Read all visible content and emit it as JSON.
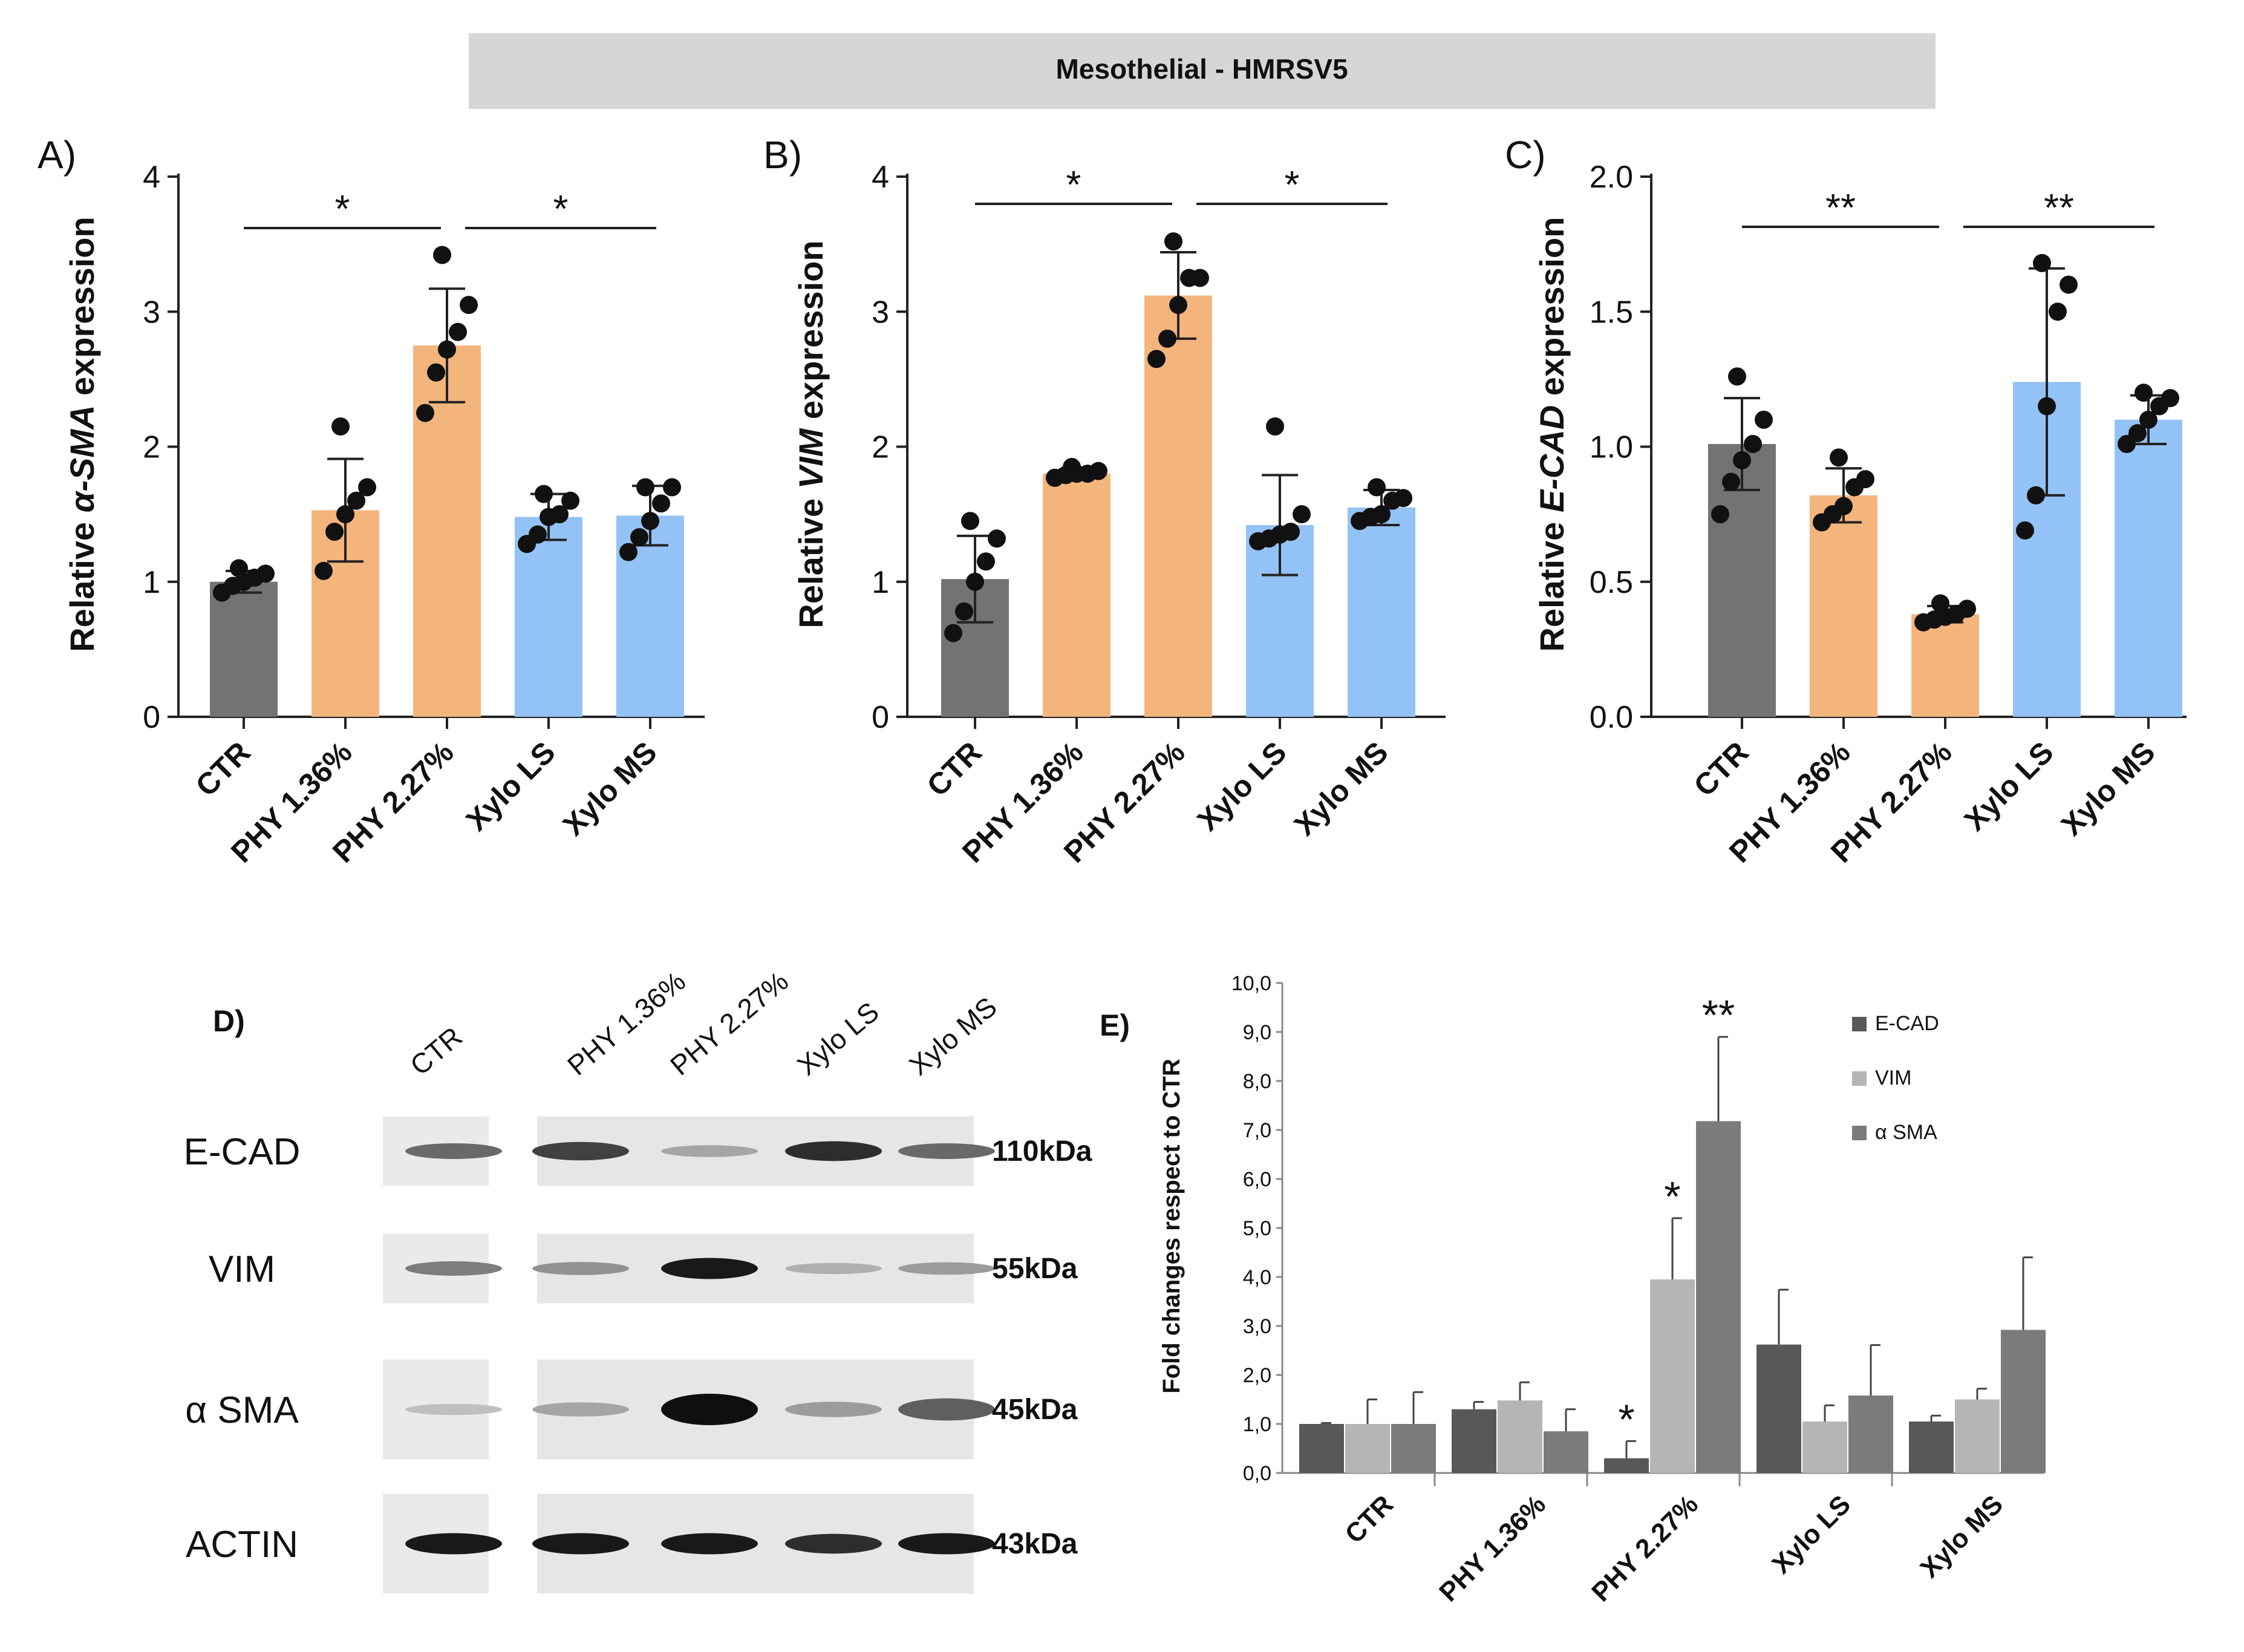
{
  "header": {
    "title": "Mesothelial - HMRSV5"
  },
  "colors": {
    "ctr": "#737373",
    "phy": "#F4B57D",
    "xylo": "#93C3F6",
    "ecad": "#585858",
    "vim": "#B5B5B5",
    "asma": "#7B7B7B",
    "header_bg": "#D6D6D6",
    "dot": "#111111"
  },
  "chart_data": [
    {
      "panel": "A)",
      "type": "bar",
      "title": "",
      "ylabel_prefix": "Relative ",
      "ylabel_gene": "α-SMA",
      "ylabel_suffix": " expression",
      "ylim": [
        0,
        4
      ],
      "yticks": [
        "0",
        "1",
        "2",
        "3",
        "4"
      ],
      "categories": [
        "CTR",
        "PHY 1.36%",
        "PHY 2.27%",
        "Xylo LS",
        "Xylo MS"
      ],
      "values": [
        1.0,
        1.53,
        2.75,
        1.48,
        1.49
      ],
      "errors": [
        0.08,
        0.38,
        0.42,
        0.17,
        0.22
      ],
      "points": [
        [
          0.92,
          0.97,
          1.0,
          1.03,
          1.06,
          1.1
        ],
        [
          1.08,
          1.37,
          1.5,
          1.6,
          1.7,
          2.15
        ],
        [
          2.25,
          2.55,
          2.72,
          2.85,
          3.05,
          3.42
        ],
        [
          1.28,
          1.35,
          1.48,
          1.5,
          1.6,
          1.65
        ],
        [
          1.22,
          1.33,
          1.45,
          1.58,
          1.7,
          1.7
        ]
      ],
      "significance": [
        {
          "from": 0,
          "to": 2,
          "label": "*"
        },
        {
          "from": 2,
          "to": 4,
          "label": "*"
        }
      ]
    },
    {
      "panel": "B)",
      "type": "bar",
      "title": "",
      "ylabel_prefix": "Relative ",
      "ylabel_gene": "VIM",
      "ylabel_suffix": " expression",
      "ylim": [
        0,
        4
      ],
      "yticks": [
        "0",
        "1",
        "2",
        "3",
        "4"
      ],
      "categories": [
        "CTR",
        "PHY 1.36%",
        "PHY 2.27%",
        "Xylo LS",
        "Xylo MS"
      ],
      "values": [
        1.02,
        1.8,
        3.12,
        1.42,
        1.55
      ],
      "errors": [
        0.32,
        0.03,
        0.32,
        0.37,
        0.13
      ],
      "points": [
        [
          0.62,
          0.78,
          1.0,
          1.15,
          1.32,
          1.45
        ],
        [
          1.77,
          1.79,
          1.8,
          1.8,
          1.82,
          1.85
        ],
        [
          2.65,
          2.8,
          3.05,
          3.25,
          3.25,
          3.52
        ],
        [
          1.3,
          1.32,
          1.35,
          1.37,
          1.5,
          2.15
        ],
        [
          1.45,
          1.48,
          1.5,
          1.6,
          1.62,
          1.7
        ]
      ],
      "significance": [
        {
          "from": 0,
          "to": 2,
          "label": "*"
        },
        {
          "from": 2,
          "to": 4,
          "label": "*"
        }
      ]
    },
    {
      "panel": "C)",
      "type": "bar",
      "title": "",
      "ylabel_prefix": "Relative ",
      "ylabel_gene": "E-CAD",
      "ylabel_suffix": " expression",
      "ylim": [
        0,
        2
      ],
      "yticks": [
        "0.0",
        "0.5",
        "1.0",
        "1.5",
        "2.0"
      ],
      "categories": [
        "CTR",
        "PHY 1.36%",
        "PHY 2.27%",
        "Xylo LS",
        "Xylo MS"
      ],
      "values": [
        1.01,
        0.82,
        0.38,
        1.24,
        1.1
      ],
      "errors": [
        0.17,
        0.1,
        0.03,
        0.42,
        0.09
      ],
      "points": [
        [
          0.75,
          0.87,
          0.95,
          1.01,
          1.1,
          1.26
        ],
        [
          0.72,
          0.75,
          0.78,
          0.85,
          0.88,
          0.96
        ],
        [
          0.35,
          0.36,
          0.37,
          0.38,
          0.4,
          0.42
        ],
        [
          0.69,
          0.82,
          1.15,
          1.5,
          1.6,
          1.68
        ],
        [
          1.01,
          1.05,
          1.1,
          1.15,
          1.18,
          1.2
        ]
      ],
      "significance": [
        {
          "from": 0,
          "to": 2,
          "label": "**"
        },
        {
          "from": 2,
          "to": 4,
          "label": "**"
        }
      ]
    },
    {
      "panel": "E)",
      "type": "bar",
      "title": "",
      "ylabel": "Fold changes respect to CTR",
      "ylim": [
        0,
        10
      ],
      "yticks": [
        "0,0",
        "1,0",
        "2,0",
        "3,0",
        "4,0",
        "5,0",
        "6,0",
        "7,0",
        "8,0",
        "9,0",
        "10,0"
      ],
      "categories": [
        "CTR",
        "PHY 1.36%",
        "PHY 2.27%",
        "Xylo LS",
        "Xylo MS"
      ],
      "legend_position": "top-right",
      "series": [
        {
          "name": "E-CAD",
          "values": [
            1.0,
            1.3,
            0.3,
            2.62,
            1.05
          ],
          "errors": [
            0.02,
            0.15,
            0.35,
            1.12,
            0.12
          ],
          "marks": [
            "",
            "",
            "*",
            "",
            ""
          ]
        },
        {
          "name": "VIM",
          "values": [
            1.0,
            1.48,
            3.95,
            1.05,
            1.5
          ],
          "errors": [
            0.5,
            0.37,
            1.25,
            0.33,
            0.22
          ],
          "marks": [
            "",
            "",
            "*",
            "",
            ""
          ]
        },
        {
          "name": "α SMA",
          "values": [
            1.0,
            0.85,
            7.18,
            1.58,
            2.92
          ],
          "errors": [
            0.65,
            0.45,
            1.72,
            1.03,
            1.48
          ],
          "marks": [
            "",
            "",
            "**",
            "",
            ""
          ]
        }
      ]
    }
  ],
  "blot": {
    "panel_label": "D)",
    "lanes": [
      "CTR",
      "PHY 1.36%",
      "PHY 2.27%",
      "Xylo LS",
      "Xylo MS"
    ],
    "rows": [
      {
        "protein": "E-CAD",
        "size": "110kDa",
        "intensity": [
          0.55,
          0.75,
          0.25,
          0.85,
          0.55
        ]
      },
      {
        "protein": "VIM",
        "size": "55kDa",
        "intensity": [
          0.45,
          0.35,
          0.95,
          0.2,
          0.3
        ]
      },
      {
        "protein": "α SMA",
        "size": "45kDa",
        "intensity": [
          0.12,
          0.25,
          1.0,
          0.3,
          0.6
        ]
      },
      {
        "protein": "ACTIN",
        "size": "43kDa",
        "intensity": [
          0.95,
          0.95,
          0.95,
          0.85,
          0.95
        ]
      }
    ]
  }
}
